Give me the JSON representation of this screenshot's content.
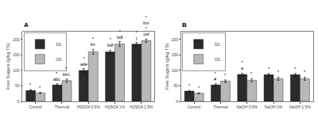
{
  "chart_data": [
    {
      "type": "bar",
      "title": "A",
      "ylabel": "Free Sugars (g/kg TS)",
      "categories": [
        "Control",
        "Thermal",
        "H2SO4 0.5%",
        "H2SO4 1%",
        "H2SO4 1.5%"
      ],
      "series": [
        {
          "name": "SS",
          "color": "#2b2b2b",
          "values": [
            35,
            53,
            100,
            160,
            185
          ],
          "errors": [
            3,
            4,
            6,
            5,
            5
          ],
          "annotations": [
            [
              "*"
            ],
            [
              "abc",
              "*"
            ],
            [
              "ade",
              "*"
            ],
            [
              "bdf",
              "*"
            ],
            [
              "j",
              "*"
            ]
          ]
        },
        {
          "name": "OS",
          "color": "#b8b8b8",
          "values": [
            27,
            67,
            160,
            185,
            196
          ],
          "errors": [
            2,
            5,
            8,
            8,
            5
          ],
          "annotations": [
            [
              "*"
            ],
            [
              "klm",
              "*"
            ],
            [
              "kn",
              "*"
            ],
            [
              "bdf",
              "*"
            ],
            [
              "cef",
              "*",
              "fnn",
              "*"
            ]
          ]
        }
      ],
      "ylim": [
        0,
        225
      ],
      "yticks": [
        0,
        50,
        100,
        150,
        200
      ],
      "grid": false,
      "legend": "upper left"
    },
    {
      "type": "bar",
      "title": "B",
      "ylabel": "Free Sugars (g/kg TS)",
      "categories": [
        "Control",
        "Thermal",
        "NaOH 0.5%",
        "NaOH 1%",
        "NaOH 1.5%"
      ],
      "series": [
        {
          "name": "SS",
          "color": "#2b2b2b",
          "values": [
            33,
            53,
            87,
            86,
            86
          ],
          "errors": [
            2,
            4,
            4,
            4,
            4
          ],
          "annotations": [
            [
              "*"
            ],
            [
              "#",
              "*"
            ],
            [
              "a",
              "*"
            ],
            [
              "*"
            ],
            [
              "*"
            ]
          ]
        },
        {
          "name": "OS",
          "color": "#b8b8b8",
          "values": [
            26,
            65,
            68,
            73,
            73
          ],
          "errors": [
            2,
            4,
            5,
            5,
            5
          ],
          "annotations": [
            [
              "*"
            ],
            [
              "*"
            ],
            [
              "*"
            ],
            [
              "*"
            ],
            [
              "*"
            ]
          ]
        }
      ],
      "ylim": [
        0,
        225
      ],
      "yticks": [
        0,
        50,
        100,
        150,
        200
      ],
      "grid": false,
      "legend": "upper left"
    }
  ]
}
